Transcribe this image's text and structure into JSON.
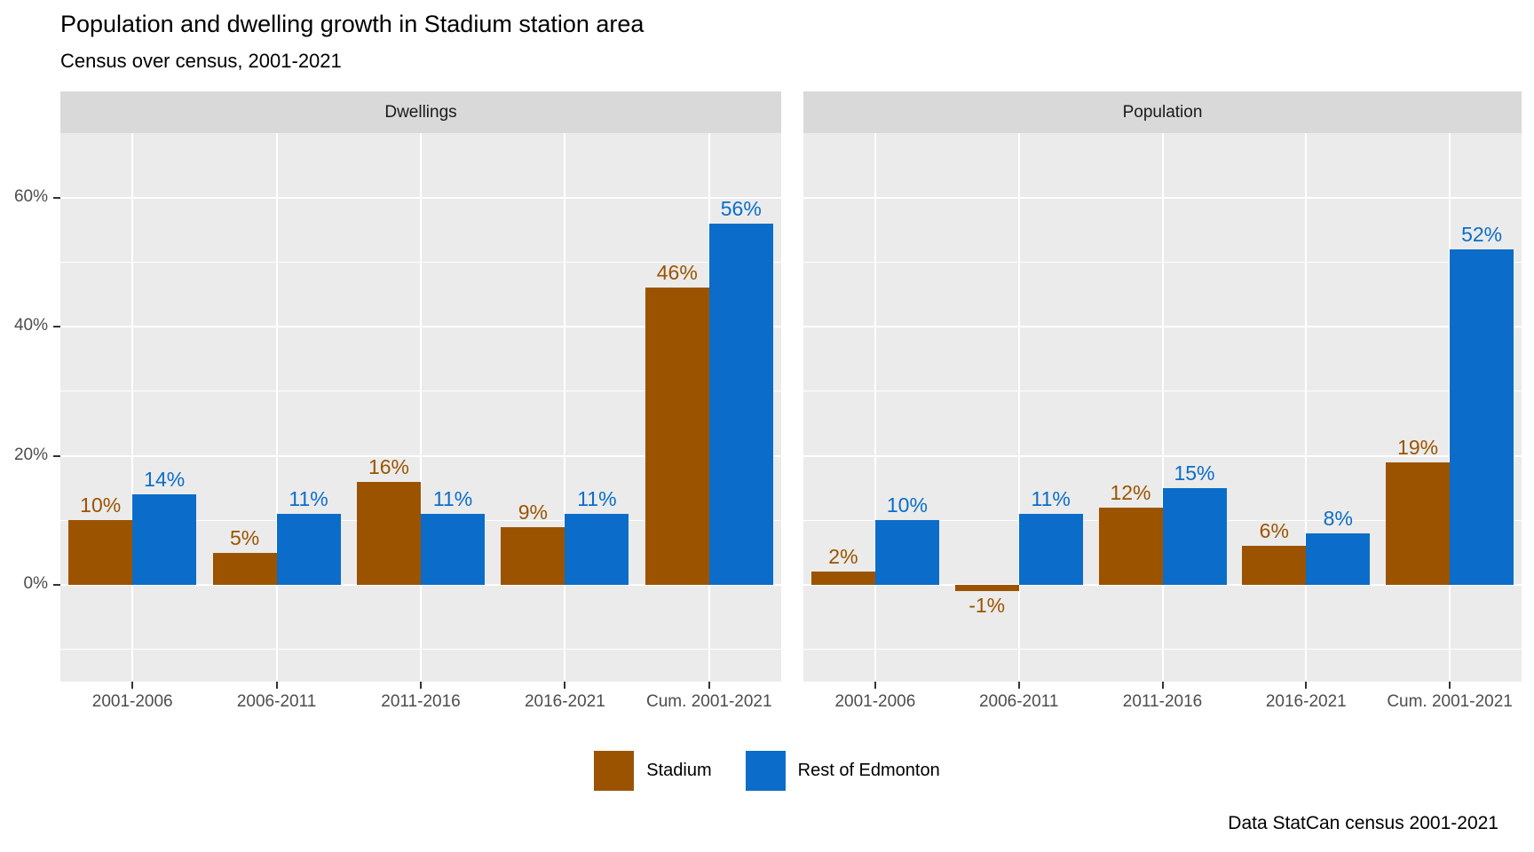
{
  "header": {
    "title": "Population and dwelling growth in Stadium station area",
    "subtitle": "Census over census, 2001-2021"
  },
  "caption": "Data StatCan census 2001-2021",
  "colors": {
    "stadium": "#9b5300",
    "rest_of_edmonton": "#0b6dc9",
    "panel_background": "#ebebeb",
    "strip_background": "#d9d9d9",
    "gridline": "#ffffff",
    "axis_text": "#4d4d4d",
    "tick_mark": "#333333"
  },
  "chart_data": {
    "type": "bar",
    "title": "Population and dwelling growth in Stadium station area",
    "subtitle": "Census over census, 2001-2021",
    "caption": "Data StatCan census 2001-2021",
    "categories": [
      "2001-2006",
      "2006-2011",
      "2011-2016",
      "2016-2021",
      "Cum. 2001-2021"
    ],
    "value_suffix": "%",
    "facets": [
      {
        "label": "Dwellings",
        "series": [
          {
            "name": "Stadium",
            "color": "#9b5300",
            "values": [
              10,
              5,
              16,
              9,
              46
            ]
          },
          {
            "name": "Rest of Edmonton",
            "color": "#0b6dc9",
            "values": [
              14,
              11,
              11,
              11,
              56
            ]
          }
        ]
      },
      {
        "label": "Population",
        "series": [
          {
            "name": "Stadium",
            "color": "#9b5300",
            "values": [
              2,
              -1,
              12,
              6,
              19
            ]
          },
          {
            "name": "Rest of Edmonton",
            "color": "#0b6dc9",
            "values": [
              10,
              11,
              15,
              8,
              52
            ]
          }
        ]
      }
    ],
    "y_axis": {
      "tick_values": [
        0,
        20,
        40,
        60
      ],
      "tick_labels": [
        "0%",
        "20%",
        "40%",
        "60%"
      ],
      "minor_gridlines": [
        -10,
        10,
        30,
        50
      ],
      "ylim": [
        -15,
        70
      ]
    },
    "grid": "white major and minor gridlines on grey panel",
    "legend_position": "bottom",
    "legend": {
      "items": [
        {
          "label": "Stadium",
          "color": "#9b5300"
        },
        {
          "label": "Rest of Edmonton",
          "color": "#0b6dc9"
        }
      ]
    }
  }
}
